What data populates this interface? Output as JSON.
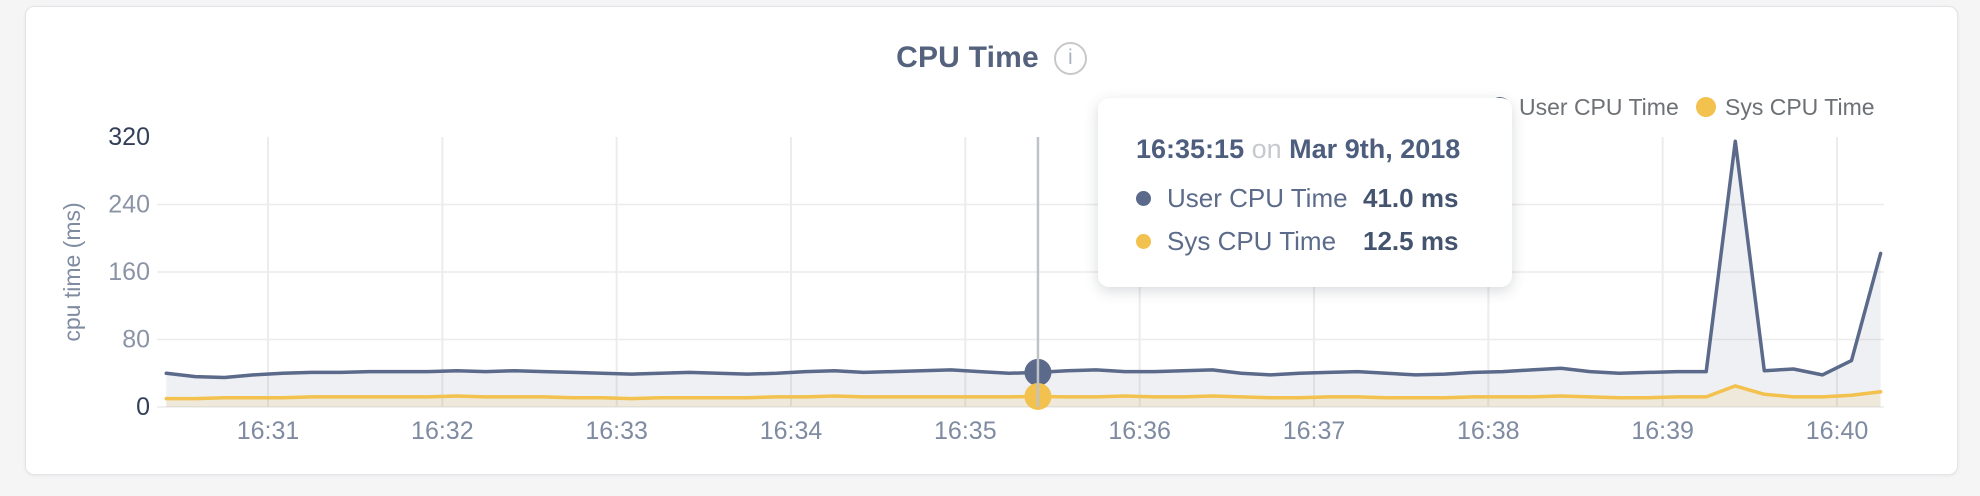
{
  "page": {
    "background": "#f5f5f6"
  },
  "header": {
    "title": "CPU Time",
    "info_icon": "i"
  },
  "legend": {
    "items": [
      {
        "label": "User CPU Time",
        "color": "#5b6a8a"
      },
      {
        "label": "Sys CPU Time",
        "color": "#f2c14e"
      }
    ]
  },
  "tooltip": {
    "time": "16:35:15",
    "connector": "on",
    "date": "Mar 9th, 2018",
    "rows": [
      {
        "label": "User CPU Time",
        "value": "41.0 ms",
        "color": "#5b6a8a"
      },
      {
        "label": "Sys CPU Time",
        "value": "12.5 ms",
        "color": "#f2c14e"
      }
    ]
  },
  "chart_data": {
    "type": "area",
    "title": "CPU Time",
    "xlabel": "",
    "ylabel": "cpu time (ms)",
    "ylim": [
      0,
      320
    ],
    "yticks": [
      0,
      80,
      160,
      240,
      320
    ],
    "ytick_emphasized": [
      0,
      320
    ],
    "xticks": [
      "16:31",
      "16:32",
      "16:33",
      "16:34",
      "16:35",
      "16:36",
      "16:37",
      "16:38",
      "16:39",
      "16:40"
    ],
    "grid": true,
    "legend_position": "top-right",
    "x_start": "16:30:25",
    "x_step_seconds": 10,
    "series": [
      {
        "name": "User CPU Time",
        "color": "#5b6a8a",
        "fill": "rgba(91,106,138,0.10)",
        "values": [
          40,
          36,
          35,
          38,
          40,
          41,
          41,
          42,
          42,
          42,
          43,
          42,
          43,
          42,
          41,
          40,
          39,
          40,
          41,
          40,
          39,
          40,
          42,
          43,
          41,
          42,
          43,
          44,
          42,
          40,
          41,
          43,
          44,
          42,
          42,
          43,
          44,
          40,
          38,
          40,
          41,
          42,
          40,
          38,
          39,
          41,
          42,
          44,
          46,
          42,
          40,
          41,
          42,
          42,
          315,
          43,
          45,
          38,
          55,
          182
        ]
      },
      {
        "name": "Sys CPU Time",
        "color": "#f2c14e",
        "fill": "rgba(242,193,78,0.14)",
        "values": [
          10,
          10,
          11,
          11,
          11,
          12,
          12,
          12,
          12,
          12,
          13,
          12,
          12,
          12,
          11,
          11,
          10,
          11,
          11,
          11,
          11,
          12,
          12,
          13,
          12,
          12,
          12,
          12,
          12,
          12,
          12.5,
          12,
          12,
          13,
          12,
          12,
          13,
          12,
          11,
          11,
          12,
          12,
          11,
          11,
          11,
          12,
          12,
          12,
          13,
          12,
          11,
          11,
          12,
          12,
          25,
          15,
          12,
          12,
          14,
          18
        ]
      }
    ],
    "hover": {
      "index": 30,
      "time_label": "16:35:15",
      "values": {
        "User CPU Time": 41.0,
        "Sys CPU Time": 12.5
      },
      "crosshair_color": "#bfc2c7"
    },
    "colors": {
      "grid": "#ececec",
      "ytick": "#8b94a6",
      "ytick_emphasized": "#333f59",
      "xtick": "#7f8ba0",
      "axis_title": "#7f8ba0"
    }
  }
}
